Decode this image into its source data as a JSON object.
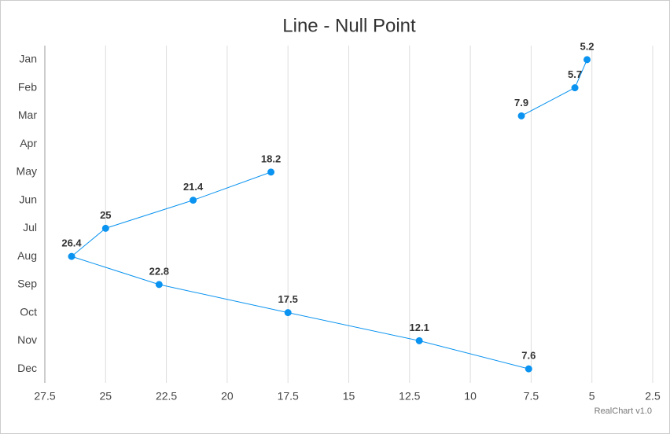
{
  "chart_data": {
    "type": "line",
    "orientation": "horizontal",
    "title": "Line - Null Point",
    "categories": [
      "Jan",
      "Feb",
      "Mar",
      "Apr",
      "May",
      "Jun",
      "Jul",
      "Aug",
      "Sep",
      "Oct",
      "Nov",
      "Dec"
    ],
    "values": [
      5.2,
      5.7,
      7.9,
      null,
      18.2,
      21.4,
      25,
      26.4,
      22.8,
      17.5,
      12.1,
      7.6
    ],
    "color": "#0a93f0",
    "xlim": [
      27.5,
      2.5
    ],
    "xticks": [
      27.5,
      25,
      22.5,
      20,
      17.5,
      15,
      12.5,
      10,
      7.5,
      5,
      2.5
    ],
    "grid": true,
    "credits": "RealChart v1.0"
  }
}
